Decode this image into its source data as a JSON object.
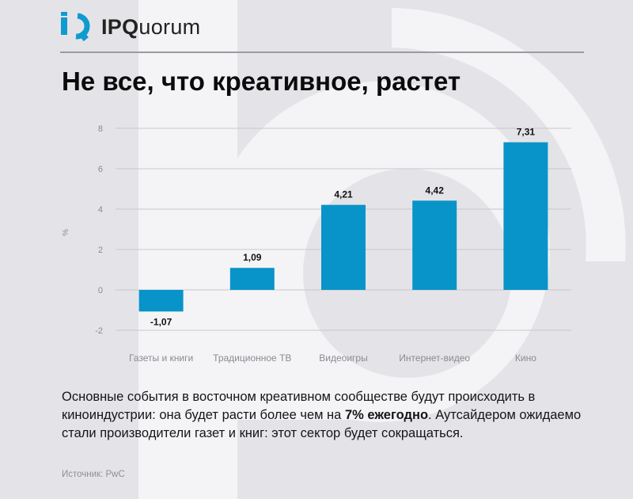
{
  "brand": {
    "name_bold": "IPQ",
    "name_rest": "uorum"
  },
  "title": "Не все, что креативное, растет",
  "description": {
    "part1": "Основные события в восточном креативном сообществе будут происходить в киноиндустрии: она будет расти более чем на ",
    "highlight": "7% ежегодно",
    "part2": ". Аутсайдером ожидаемо стали производители газет и книг: этот сектор будет сокращаться."
  },
  "source": "Источник: PwC",
  "colors": {
    "bar": "#0894c8",
    "background": "#e4e4e8",
    "watermark": "#f4f4f7",
    "logo": "#0e9bcf"
  },
  "chart_data": {
    "type": "bar",
    "categories": [
      "Газеты и книги",
      "Традиционное ТВ",
      "Видеоигры",
      "Интернет-видео",
      "Кино"
    ],
    "values": [
      -1.07,
      1.09,
      4.21,
      4.42,
      7.31
    ],
    "data_labels": [
      "-1,07",
      "1,09",
      "4,21",
      "4,42",
      "7,31"
    ],
    "ylabel": "%",
    "ylim": [
      -2,
      8
    ],
    "yticks": [
      8,
      6,
      4,
      2,
      0,
      -2
    ],
    "ytick_labels": [
      "8",
      "6",
      "4",
      "2",
      "0",
      "-2"
    ],
    "grid": true
  }
}
